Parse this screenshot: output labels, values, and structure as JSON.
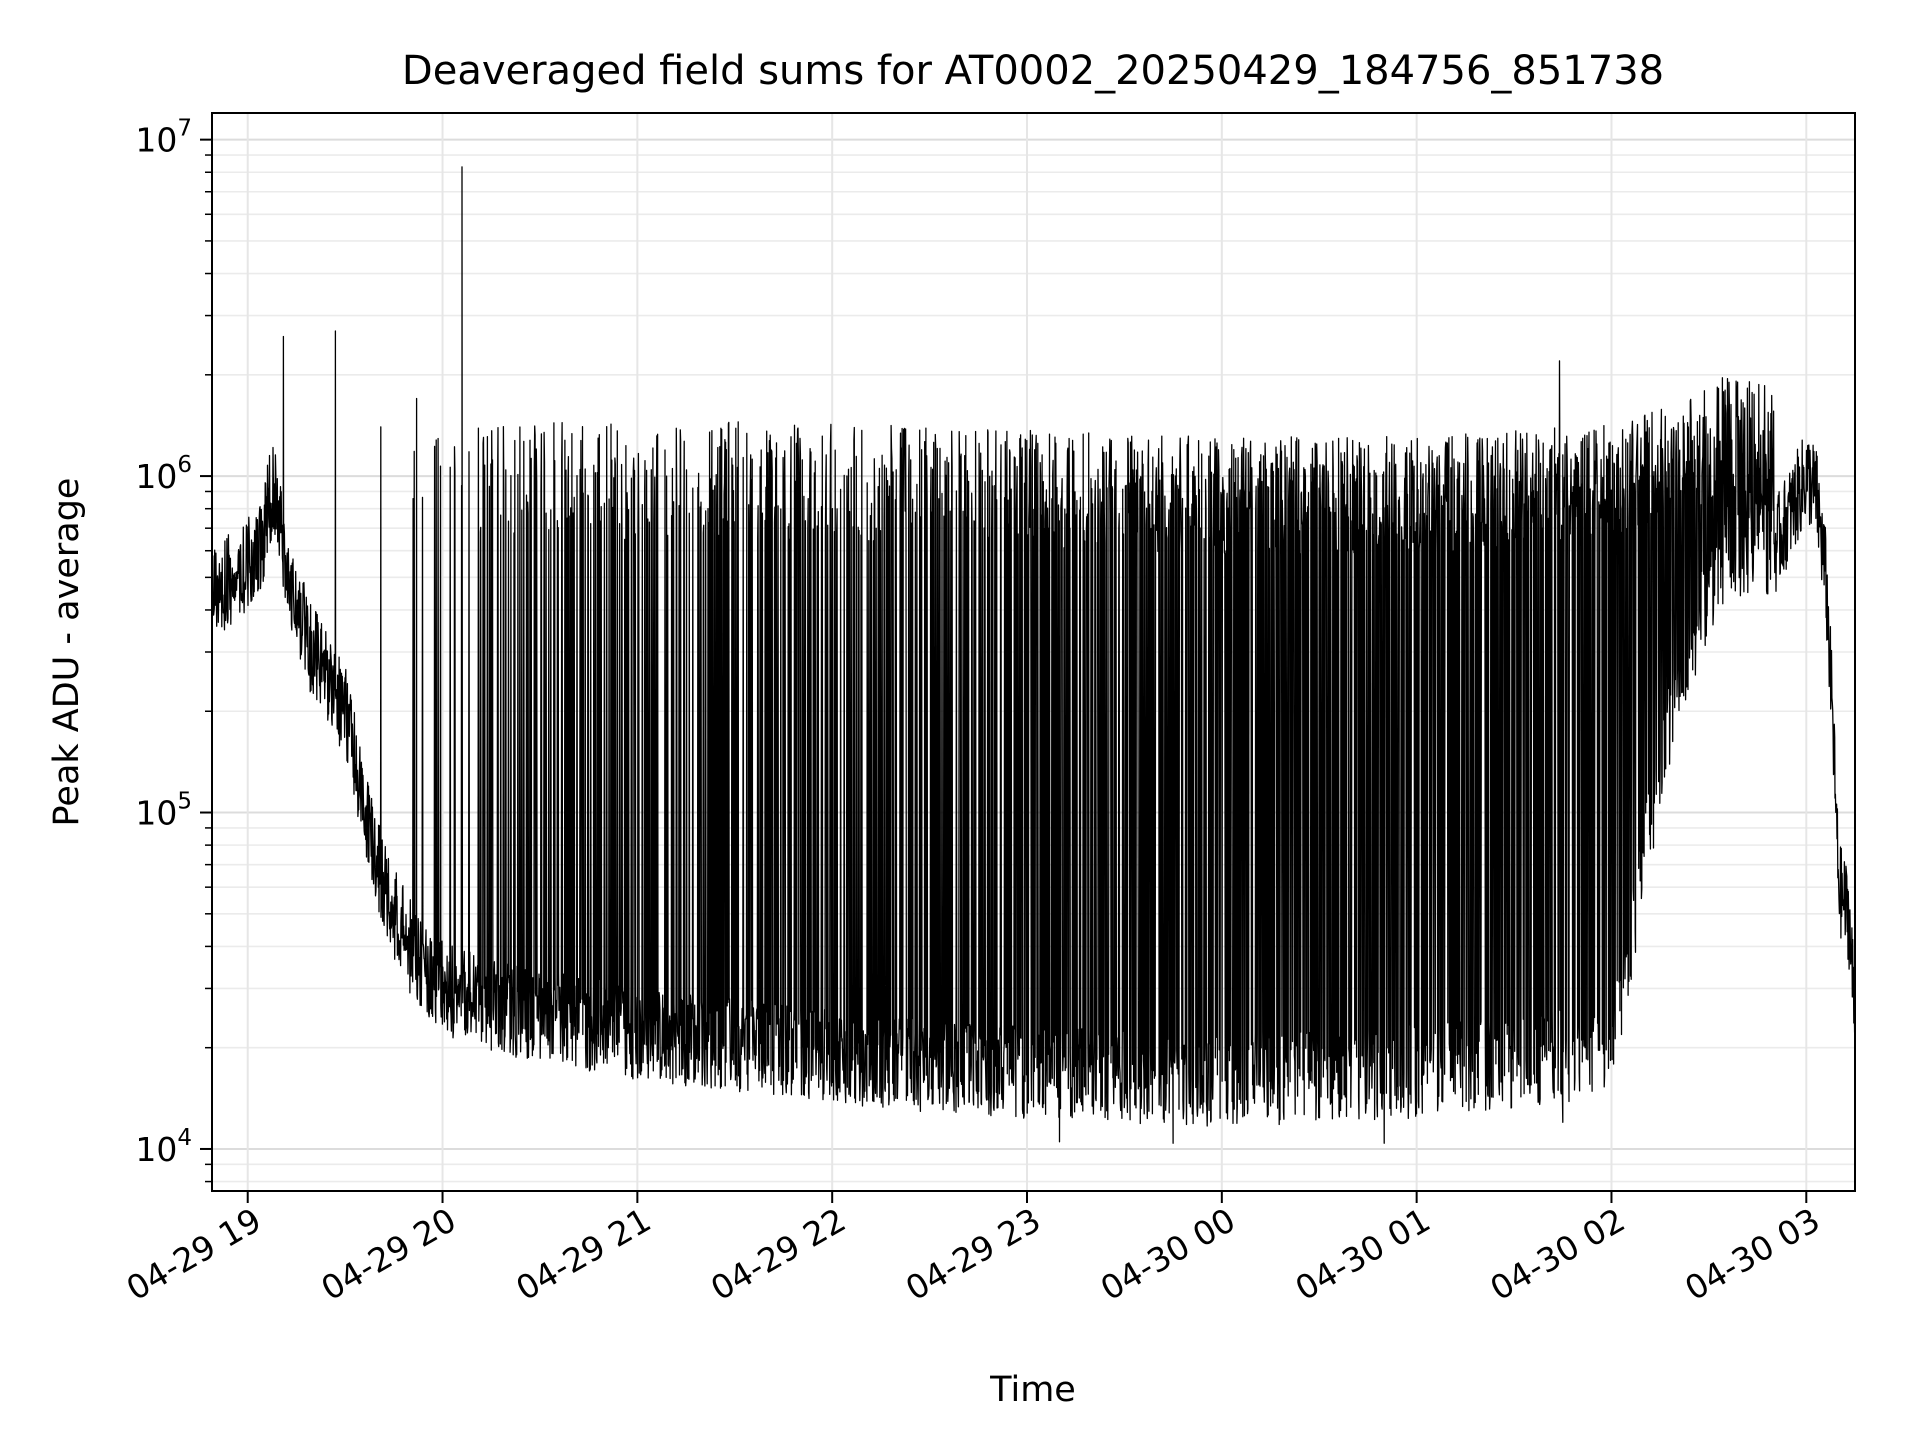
{
  "chart_data": {
    "type": "line",
    "title": "Deaveraged field sums for AT0002_20250429_184756_851738",
    "xlabel": "Time",
    "ylabel": "Peak ADU - average",
    "yscale": "log",
    "ylim": [
      7500,
      12000000
    ],
    "xlim": [
      "2025-04-29 18:49",
      "2025-04-30 03:15"
    ],
    "grid": true,
    "line_color": "#000000",
    "x_ticks": [
      {
        "x": "2025-04-29 19:00",
        "label": "04-29 19"
      },
      {
        "x": "2025-04-29 20:00",
        "label": "04-29 20"
      },
      {
        "x": "2025-04-29 21:00",
        "label": "04-29 21"
      },
      {
        "x": "2025-04-29 22:00",
        "label": "04-29 22"
      },
      {
        "x": "2025-04-29 23:00",
        "label": "04-29 23"
      },
      {
        "x": "2025-04-30 00:00",
        "label": "04-30 00"
      },
      {
        "x": "2025-04-30 01:00",
        "label": "04-30 01"
      },
      {
        "x": "2025-04-30 02:00",
        "label": "04-30 02"
      },
      {
        "x": "2025-04-30 03:00",
        "label": "04-30 03"
      }
    ],
    "y_ticks": [
      {
        "value": 10000,
        "base": "10",
        "exp": "4"
      },
      {
        "value": 100000,
        "base": "10",
        "exp": "5"
      },
      {
        "value": 1000000,
        "base": "10",
        "exp": "6"
      },
      {
        "value": 10000000,
        "base": "10",
        "exp": "7"
      }
    ],
    "series": [
      {
        "x": [
          "2025-04-29 18:49",
          "2025-04-29 18:55",
          "2025-04-29 19:00",
          "2025-04-29 19:04",
          "2025-04-29 19:06",
          "2025-04-29 19:08",
          "2025-04-29 19:10",
          "2025-04-29 19:12",
          "2025-04-29 19:15",
          "2025-04-29 19:20",
          "2025-04-29 19:25",
          "2025-04-29 19:30",
          "2025-04-29 19:35",
          "2025-04-29 19:40",
          "2025-04-29 19:45",
          "2025-04-29 19:50",
          "2025-04-29 19:55",
          "2025-04-29 20:00",
          "2025-04-29 20:10",
          "2025-04-29 20:20",
          "2025-04-29 20:30",
          "2025-04-29 20:40",
          "2025-04-29 20:50",
          "2025-04-29 21:00",
          "2025-04-29 21:20",
          "2025-04-29 21:40",
          "2025-04-29 22:00",
          "2025-04-29 22:20",
          "2025-04-29 22:40",
          "2025-04-29 23:00",
          "2025-04-29 23:30",
          "2025-04-30 00:00",
          "2025-04-30 00:30",
          "2025-04-30 01:00",
          "2025-04-30 01:30",
          "2025-04-30 02:00",
          "2025-04-30 02:20",
          "2025-04-30 02:35",
          "2025-04-30 02:50",
          "2025-04-30 03:00",
          "2025-04-30 03:03",
          "2025-04-30 03:06",
          "2025-04-30 03:08",
          "2025-04-30 03:10",
          "2025-04-30 03:13",
          "2025-04-30 03:15"
        ],
        "y": [
          450000,
          500000,
          550000,
          600000,
          800000,
          900000,
          700000,
          500000,
          400000,
          300000,
          250000,
          200000,
          120000,
          70000,
          50000,
          40000,
          35000,
          30000,
          28000,
          26000,
          25000,
          24000,
          23000,
          22000,
          21000,
          20000,
          19000,
          18000,
          17500,
          17000,
          16500,
          16000,
          16500,
          17000,
          18000,
          20000,
          250000,
          600000,
          600000,
          1000000,
          900000,
          500000,
          200000,
          60000,
          50000,
          25000
        ]
      }
    ],
    "upper_envelope": {
      "x": [
        "2025-04-29 20:10",
        "2025-04-29 21:00",
        "2025-04-29 22:00",
        "2025-04-29 23:00",
        "2025-04-30 00:00",
        "2025-04-30 01:00",
        "2025-04-30 02:00",
        "2025-04-30 02:20",
        "2025-04-30 02:35",
        "2025-04-30 02:50"
      ],
      "y": [
        1050000,
        1050000,
        1050000,
        1000000,
        950000,
        950000,
        1050000,
        1200000,
        1450000,
        1350000
      ]
    },
    "spikes": [
      {
        "x": "2025-04-29 19:11",
        "y": 2600000
      },
      {
        "x": "2025-04-29 19:27",
        "y": 2700000
      },
      {
        "x": "2025-04-29 19:41",
        "y": 1400000
      },
      {
        "x": "2025-04-29 19:52",
        "y": 1700000
      },
      {
        "x": "2025-04-29 20:06",
        "y": 8300000
      },
      {
        "x": "2025-04-29 22:48",
        "y": 1350000
      },
      {
        "x": "2025-04-30 01:44",
        "y": 2200000
      },
      {
        "x": "2025-04-30 02:35",
        "y": 1800000
      }
    ],
    "dips": [
      {
        "x": "2025-04-29 23:10",
        "y": 10500
      },
      {
        "x": "2025-04-29 23:45",
        "y": 10400
      },
      {
        "x": "2025-04-30 00:50",
        "y": 10400
      },
      {
        "x": "2025-04-30 01:45",
        "y": 12000
      }
    ]
  }
}
